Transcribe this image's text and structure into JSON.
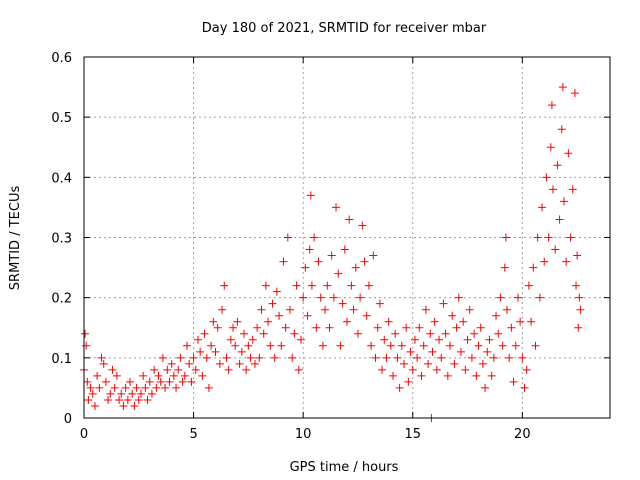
{
  "chart_data": {
    "type": "scatter",
    "title": "Day 180 of 2021, SRMTID for receiver mbar",
    "xlabel": "GPS time / hours",
    "ylabel": "SRMTID / TECUs",
    "xlim": [
      0,
      24
    ],
    "ylim": [
      0,
      0.6
    ],
    "x_ticks": [
      0,
      5,
      10,
      15,
      20
    ],
    "y_ticks": [
      0,
      0.1,
      0.2,
      0.3,
      0.4,
      0.5,
      0.6
    ],
    "x_tick_labels": [
      "0",
      "5",
      "10",
      "15",
      "20"
    ],
    "y_tick_labels": [
      "0",
      "0.1",
      "0.2",
      "0.3",
      "0.4",
      "0.5",
      "0.6"
    ],
    "grid": true,
    "marker": "plus",
    "color": "#ff0000",
    "series": [
      {
        "name": "SRMTID",
        "points": [
          [
            0.0,
            0.08
          ],
          [
            0.05,
            0.14
          ],
          [
            0.1,
            0.12
          ],
          [
            0.15,
            0.06
          ],
          [
            0.2,
            0.03
          ],
          [
            0.3,
            0.05
          ],
          [
            0.4,
            0.04
          ],
          [
            0.5,
            0.02
          ],
          [
            0.6,
            0.07
          ],
          [
            0.7,
            0.05
          ],
          [
            0.8,
            0.1
          ],
          [
            0.9,
            0.09
          ],
          [
            1.0,
            0.06
          ],
          [
            1.1,
            0.03
          ],
          [
            1.2,
            0.04
          ],
          [
            1.3,
            0.08
          ],
          [
            1.4,
            0.05
          ],
          [
            1.5,
            0.07
          ],
          [
            1.6,
            0.03
          ],
          [
            1.7,
            0.04
          ],
          [
            1.8,
            0.02
          ],
          [
            1.9,
            0.05
          ],
          [
            2.0,
            0.03
          ],
          [
            2.1,
            0.06
          ],
          [
            2.2,
            0.04
          ],
          [
            2.3,
            0.02
          ],
          [
            2.4,
            0.05
          ],
          [
            2.5,
            0.03
          ],
          [
            2.6,
            0.04
          ],
          [
            2.7,
            0.07
          ],
          [
            2.8,
            0.05
          ],
          [
            2.9,
            0.03
          ],
          [
            3.0,
            0.06
          ],
          [
            3.1,
            0.04
          ],
          [
            3.2,
            0.08
          ],
          [
            3.3,
            0.05
          ],
          [
            3.4,
            0.07
          ],
          [
            3.5,
            0.06
          ],
          [
            3.6,
            0.1
          ],
          [
            3.7,
            0.05
          ],
          [
            3.8,
            0.08
          ],
          [
            3.9,
            0.06
          ],
          [
            4.0,
            0.09
          ],
          [
            4.1,
            0.07
          ],
          [
            4.2,
            0.05
          ],
          [
            4.3,
            0.08
          ],
          [
            4.4,
            0.1
          ],
          [
            4.5,
            0.06
          ],
          [
            4.6,
            0.07
          ],
          [
            4.7,
            0.12
          ],
          [
            4.8,
            0.09
          ],
          [
            4.9,
            0.06
          ],
          [
            5.0,
            0.1
          ],
          [
            5.1,
            0.08
          ],
          [
            5.2,
            0.13
          ],
          [
            5.3,
            0.11
          ],
          [
            5.4,
            0.07
          ],
          [
            5.5,
            0.14
          ],
          [
            5.6,
            0.1
          ],
          [
            5.7,
            0.05
          ],
          [
            5.8,
            0.12
          ],
          [
            5.9,
            0.16
          ],
          [
            6.0,
            0.11
          ],
          [
            6.1,
            0.15
          ],
          [
            6.2,
            0.09
          ],
          [
            6.3,
            0.18
          ],
          [
            6.4,
            0.22
          ],
          [
            6.5,
            0.1
          ],
          [
            6.6,
            0.08
          ],
          [
            6.7,
            0.13
          ],
          [
            6.8,
            0.15
          ],
          [
            6.9,
            0.12
          ],
          [
            7.0,
            0.16
          ],
          [
            7.1,
            0.09
          ],
          [
            7.2,
            0.11
          ],
          [
            7.3,
            0.14
          ],
          [
            7.4,
            0.08
          ],
          [
            7.5,
            0.12
          ],
          [
            7.6,
            0.1
          ],
          [
            7.7,
            0.13
          ],
          [
            7.8,
            0.09
          ],
          [
            7.9,
            0.15
          ],
          [
            8.0,
            0.1
          ],
          [
            8.1,
            0.18
          ],
          [
            8.2,
            0.14
          ],
          [
            8.3,
            0.22
          ],
          [
            8.4,
            0.16
          ],
          [
            8.5,
            0.12
          ],
          [
            8.6,
            0.19
          ],
          [
            8.7,
            0.1
          ],
          [
            8.8,
            0.21
          ],
          [
            8.9,
            0.17
          ],
          [
            9.0,
            0.12
          ],
          [
            9.1,
            0.26
          ],
          [
            9.2,
            0.15
          ],
          [
            9.3,
            0.3
          ],
          [
            9.4,
            0.18
          ],
          [
            9.5,
            0.1
          ],
          [
            9.6,
            0.14
          ],
          [
            9.7,
            0.22
          ],
          [
            9.8,
            0.08
          ],
          [
            9.9,
            0.13
          ],
          [
            10.0,
            0.2
          ],
          [
            10.1,
            0.25
          ],
          [
            10.2,
            0.17
          ],
          [
            10.3,
            0.28
          ],
          [
            10.35,
            0.37
          ],
          [
            10.4,
            0.22
          ],
          [
            10.5,
            0.3
          ],
          [
            10.6,
            0.15
          ],
          [
            10.7,
            0.26
          ],
          [
            10.8,
            0.2
          ],
          [
            10.9,
            0.12
          ],
          [
            11.0,
            0.18
          ],
          [
            11.1,
            0.22
          ],
          [
            11.2,
            0.15
          ],
          [
            11.3,
            0.27
          ],
          [
            11.4,
            0.2
          ],
          [
            11.5,
            0.35
          ],
          [
            11.6,
            0.24
          ],
          [
            11.7,
            0.12
          ],
          [
            11.8,
            0.19
          ],
          [
            11.9,
            0.28
          ],
          [
            12.0,
            0.16
          ],
          [
            12.1,
            0.33
          ],
          [
            12.2,
            0.22
          ],
          [
            12.3,
            0.18
          ],
          [
            12.4,
            0.25
          ],
          [
            12.5,
            0.14
          ],
          [
            12.6,
            0.2
          ],
          [
            12.7,
            0.32
          ],
          [
            12.8,
            0.26
          ],
          [
            12.9,
            0.17
          ],
          [
            13.0,
            0.22
          ],
          [
            13.1,
            0.12
          ],
          [
            13.2,
            0.27
          ],
          [
            13.3,
            0.1
          ],
          [
            13.4,
            0.15
          ],
          [
            13.5,
            0.19
          ],
          [
            13.6,
            0.08
          ],
          [
            13.7,
            0.13
          ],
          [
            13.8,
            0.1
          ],
          [
            13.9,
            0.16
          ],
          [
            14.0,
            0.12
          ],
          [
            14.1,
            0.07
          ],
          [
            14.2,
            0.14
          ],
          [
            14.3,
            0.1
          ],
          [
            14.4,
            0.05
          ],
          [
            14.5,
            0.12
          ],
          [
            14.6,
            0.09
          ],
          [
            14.7,
            0.15
          ],
          [
            14.8,
            0.06
          ],
          [
            14.9,
            0.11
          ],
          [
            15.0,
            0.08
          ],
          [
            15.1,
            0.13
          ],
          [
            15.2,
            0.1
          ],
          [
            15.3,
            0.15
          ],
          [
            15.4,
            0.07
          ],
          [
            15.5,
            0.12
          ],
          [
            15.6,
            0.18
          ],
          [
            15.7,
            0.09
          ],
          [
            15.8,
            0.14
          ],
          [
            15.85,
            0.0
          ],
          [
            15.9,
            0.11
          ],
          [
            16.0,
            0.16
          ],
          [
            16.1,
            0.08
          ],
          [
            16.2,
            0.13
          ],
          [
            16.3,
            0.1
          ],
          [
            16.4,
            0.19
          ],
          [
            16.5,
            0.14
          ],
          [
            16.6,
            0.07
          ],
          [
            16.7,
            0.12
          ],
          [
            16.8,
            0.17
          ],
          [
            16.9,
            0.09
          ],
          [
            17.0,
            0.15
          ],
          [
            17.1,
            0.2
          ],
          [
            17.2,
            0.11
          ],
          [
            17.3,
            0.16
          ],
          [
            17.4,
            0.08
          ],
          [
            17.5,
            0.13
          ],
          [
            17.6,
            0.18
          ],
          [
            17.7,
            0.1
          ],
          [
            17.8,
            0.14
          ],
          [
            17.9,
            0.07
          ],
          [
            18.0,
            0.12
          ],
          [
            18.1,
            0.15
          ],
          [
            18.2,
            0.09
          ],
          [
            18.3,
            0.05
          ],
          [
            18.4,
            0.11
          ],
          [
            18.5,
            0.13
          ],
          [
            18.6,
            0.07
          ],
          [
            18.7,
            0.1
          ],
          [
            18.8,
            0.17
          ],
          [
            18.9,
            0.14
          ],
          [
            19.0,
            0.2
          ],
          [
            19.1,
            0.12
          ],
          [
            19.2,
            0.25
          ],
          [
            19.25,
            0.3
          ],
          [
            19.3,
            0.18
          ],
          [
            19.4,
            0.1
          ],
          [
            19.5,
            0.15
          ],
          [
            19.6,
            0.06
          ],
          [
            19.7,
            0.12
          ],
          [
            19.8,
            0.2
          ],
          [
            19.9,
            0.16
          ],
          [
            20.0,
            0.1
          ],
          [
            20.1,
            0.05
          ],
          [
            20.2,
            0.08
          ],
          [
            20.3,
            0.22
          ],
          [
            20.4,
            0.16
          ],
          [
            20.5,
            0.25
          ],
          [
            20.6,
            0.12
          ],
          [
            20.7,
            0.3
          ],
          [
            20.8,
            0.2
          ],
          [
            20.9,
            0.35
          ],
          [
            21.0,
            0.26
          ],
          [
            21.1,
            0.4
          ],
          [
            21.2,
            0.3
          ],
          [
            21.3,
            0.45
          ],
          [
            21.35,
            0.52
          ],
          [
            21.4,
            0.38
          ],
          [
            21.5,
            0.28
          ],
          [
            21.6,
            0.42
          ],
          [
            21.7,
            0.33
          ],
          [
            21.8,
            0.48
          ],
          [
            21.85,
            0.55
          ],
          [
            21.9,
            0.36
          ],
          [
            22.0,
            0.26
          ],
          [
            22.1,
            0.44
          ],
          [
            22.2,
            0.3
          ],
          [
            22.3,
            0.38
          ],
          [
            22.4,
            0.54
          ],
          [
            22.45,
            0.22
          ],
          [
            22.5,
            0.27
          ],
          [
            22.55,
            0.15
          ],
          [
            22.6,
            0.2
          ],
          [
            22.65,
            0.18
          ]
        ]
      }
    ]
  }
}
